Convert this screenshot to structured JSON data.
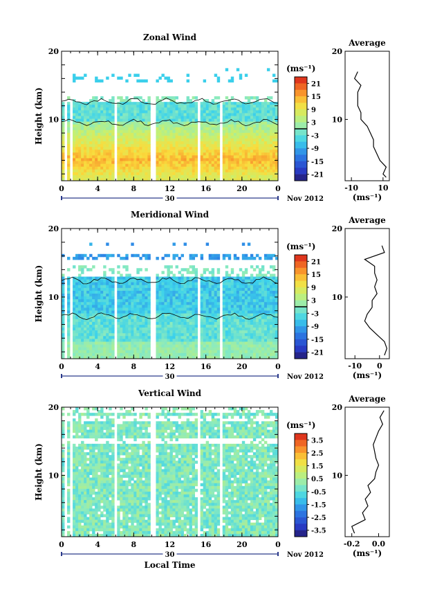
{
  "chart_data": [
    {
      "type": "heatmap",
      "title": "Zonal Wind",
      "ylabel": "Height (km)",
      "xlabel": "",
      "x_ticks": [
        "0",
        "4",
        "8",
        "12",
        "16",
        "20",
        "0"
      ],
      "y_ticks": [
        "20",
        "10"
      ],
      "ylim": [
        1,
        20
      ],
      "date_day": "30",
      "date_label": "Nov 2012",
      "colorbar": {
        "unit_label": "(ms⁻¹)",
        "ticks": [
          "21",
          "15",
          "9",
          "3",
          "-3",
          "-9",
          "-15",
          "-21"
        ],
        "range": [
          -24,
          24
        ],
        "zero_line": true
      },
      "profile": {
        "title": "Average",
        "x_ticks": [
          "-10",
          "10"
        ],
        "xlabel": "(ms⁻¹)",
        "y_ticks": [
          "20",
          "10"
        ],
        "xlim": [
          -14,
          14
        ],
        "heights": [
          1.5,
          2,
          3,
          4,
          5,
          6,
          7,
          8,
          9,
          10,
          11,
          12,
          13,
          14,
          15,
          16,
          17
        ],
        "values": [
          12,
          10,
          12,
          8,
          6,
          4,
          4,
          2,
          0,
          -4,
          -4,
          -6,
          -6,
          -6,
          -4,
          -8,
          -6
        ]
      }
    },
    {
      "type": "heatmap",
      "title": "Meridional Wind",
      "ylabel": "Height (km)",
      "xlabel": "",
      "x_ticks": [
        "0",
        "4",
        "8",
        "12",
        "16",
        "20",
        "0"
      ],
      "y_ticks": [
        "20",
        "10"
      ],
      "ylim": [
        1,
        20
      ],
      "date_day": "30",
      "date_label": "Nov 2012",
      "colorbar": {
        "unit_label": "(ms⁻¹)",
        "ticks": [
          "21",
          "15",
          "9",
          "3",
          "-3",
          "-9",
          "-15",
          "-21"
        ],
        "range": [
          -24,
          24
        ],
        "zero_line": true
      },
      "profile": {
        "title": "Average",
        "x_ticks": [
          "-10",
          "0"
        ],
        "xlabel": "(ms⁻¹)",
        "y_ticks": [
          "20",
          "10"
        ],
        "xlim": [
          -14,
          4
        ],
        "heights": [
          1.5,
          2.5,
          3.5,
          4.5,
          5.5,
          6.5,
          7.5,
          8.5,
          9.5,
          10.5,
          11.5,
          12.5,
          13.5,
          14.5,
          15.5,
          16.5,
          17.5
        ],
        "values": [
          2,
          3,
          2,
          -1,
          -4,
          -6,
          -5,
          -3,
          -3,
          -1,
          -2,
          -1,
          -2,
          -2,
          -6,
          2,
          1
        ]
      }
    },
    {
      "type": "heatmap",
      "title": "Vertical Wind",
      "ylabel": "Height (km)",
      "xlabel": "Local Time",
      "x_ticks": [
        "0",
        "4",
        "8",
        "12",
        "16",
        "20",
        "0"
      ],
      "y_ticks": [
        "20",
        "10"
      ],
      "ylim": [
        1,
        20
      ],
      "date_day": "30",
      "date_label": "Nov 2012",
      "colorbar": {
        "unit_label": "(ms⁻¹)",
        "ticks": [
          "3.5",
          "2.5",
          "1.5",
          "0.5",
          "-0.5",
          "-1.5",
          "-2.5",
          "-3.5"
        ],
        "range": [
          -4,
          4
        ],
        "zero_line": false
      },
      "profile": {
        "title": "Average",
        "x_ticks": [
          "-0.2",
          "0.0"
        ],
        "xlabel": "(ms⁻¹)",
        "y_ticks": [
          "20",
          "10"
        ],
        "xlim": [
          -0.25,
          0.08
        ],
        "heights": [
          1.5,
          2.5,
          3.5,
          4.5,
          5.5,
          6.5,
          7.5,
          8.5,
          9.5,
          10.5,
          11.5,
          12.5,
          13.5,
          14.5,
          15.5,
          16.5,
          17.5,
          18.5,
          19.5
        ],
        "values": [
          -0.18,
          -0.2,
          -0.1,
          -0.12,
          -0.08,
          -0.1,
          -0.06,
          -0.08,
          -0.03,
          -0.02,
          0.0,
          -0.02,
          -0.03,
          -0.04,
          -0.02,
          0.0,
          0.03,
          0.01,
          0.04
        ]
      }
    }
  ]
}
